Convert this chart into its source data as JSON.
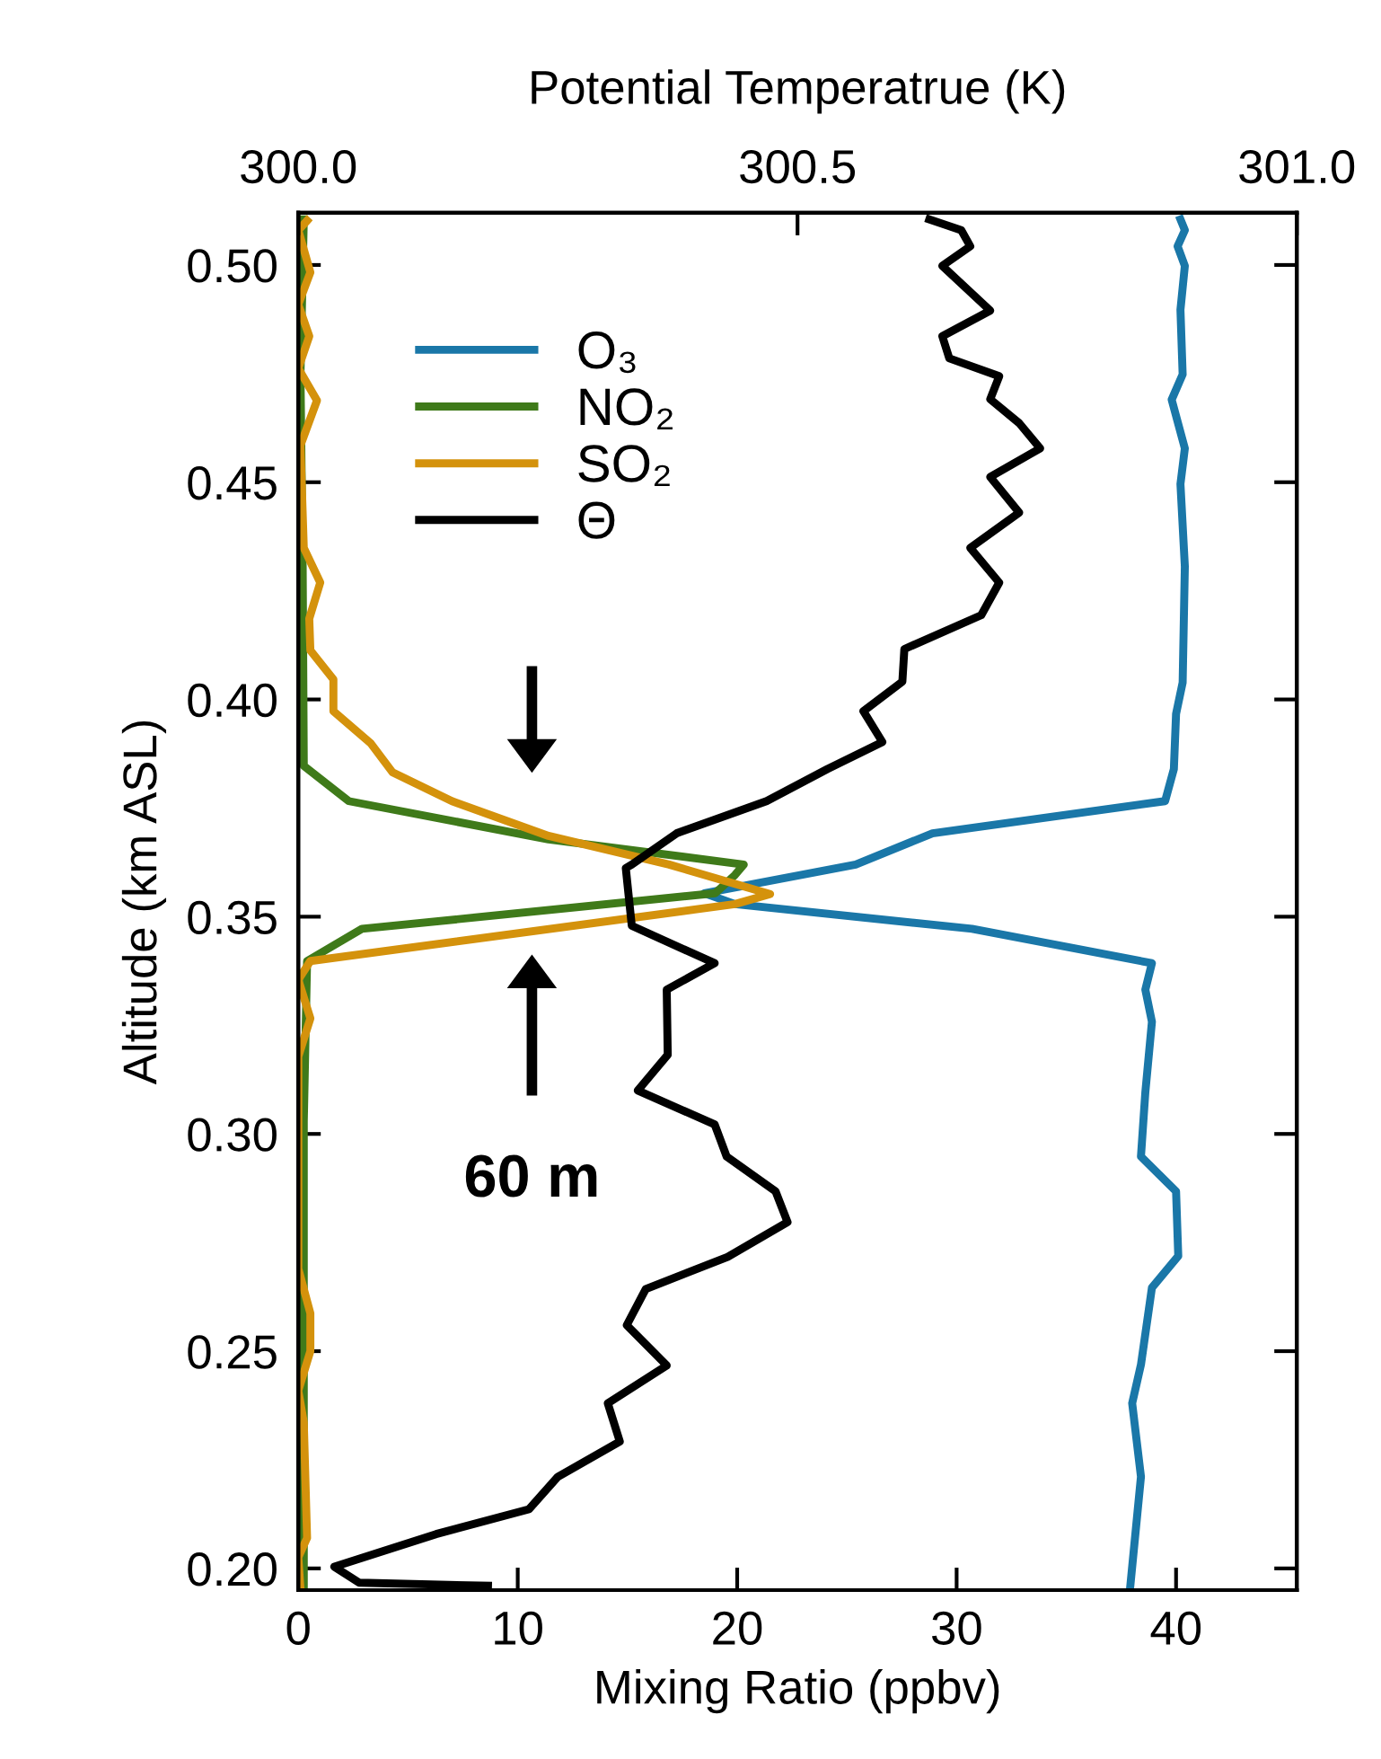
{
  "chart_data": {
    "type": "line",
    "xlabel": "Mixing Ratio (ppbv)",
    "ylabel": "Altitude (km ASL)",
    "x2label": "Potential Temperatrue (K)",
    "xlim": [
      0,
      45.5
    ],
    "xticks": [
      0,
      10,
      20,
      30,
      40
    ],
    "x2lim": [
      300.0,
      301.0
    ],
    "x2ticks": [
      {
        "value": 300.0,
        "label": "300.0"
      },
      {
        "value": 300.5,
        "label": "300.5"
      },
      {
        "value": 301.0,
        "label": "301.0"
      }
    ],
    "ylim": [
      0.195,
      0.512
    ],
    "yticks": [
      {
        "value": 0.2,
        "label": "0.20"
      },
      {
        "value": 0.25,
        "label": "0.25"
      },
      {
        "value": 0.3,
        "label": "0.30"
      },
      {
        "value": 0.35,
        "label": "0.35"
      },
      {
        "value": 0.4,
        "label": "0.40"
      },
      {
        "value": 0.45,
        "label": "0.45"
      },
      {
        "value": 0.5,
        "label": "0.50"
      }
    ],
    "legend": "top left",
    "grid": false,
    "marker": "none",
    "line_style": "solid",
    "annotations": [
      "60 m"
    ],
    "series": [
      {
        "name": "O₃",
        "color": "#1a77a8",
        "x": [
          40.2,
          40.4,
          40.07,
          40.4,
          40.2,
          40.3,
          39.8,
          40.4,
          40.2,
          40.4,
          40.3,
          40.0,
          39.9,
          39.5,
          28.9,
          25.4,
          18.5,
          19.9,
          30.7,
          38.9,
          38.6,
          38.9,
          38.6,
          38.4,
          40.0,
          40.1,
          38.9,
          38.4,
          38.0,
          38.4,
          37.9
        ],
        "values": [
          0.5105,
          0.508,
          0.5043,
          0.4998,
          0.4897,
          0.4748,
          0.469,
          0.4578,
          0.4496,
          0.4306,
          0.4039,
          0.3967,
          0.384,
          0.3766,
          0.3692,
          0.362,
          0.3554,
          0.3529,
          0.3472,
          0.3393,
          0.3332,
          0.3258,
          0.3096,
          0.2948,
          0.2868,
          0.2719,
          0.2646,
          0.2469,
          0.238,
          0.2211,
          0.1952
        ]
      },
      {
        "name": "NO₂",
        "color": "#3f7a1a",
        "x": [
          0.25,
          0.1,
          0.2,
          0.25,
          2.3,
          11.4,
          20.3,
          19.9,
          19.0,
          2.9,
          0.4,
          0.25,
          0.25
        ],
        "values": [
          0.5105,
          0.4748,
          0.4306,
          0.3847,
          0.3766,
          0.3678,
          0.362,
          0.3596,
          0.3554,
          0.3472,
          0.3398,
          0.3029,
          0.1952
        ]
      },
      {
        "name": "SO₂",
        "color": "#d4920c",
        "x": [
          0.4,
          0.0,
          0.55,
          0.0,
          0.5,
          0.0,
          0.85,
          0.1,
          0.25,
          1.0,
          0.5,
          0.55,
          1.6,
          1.6,
          3.3,
          4.3,
          7.0,
          11.4,
          16.9,
          21.5,
          19.9,
          0.55,
          0.0,
          0.55,
          0.0,
          0.0,
          0.0,
          0.55,
          0.55,
          0.0,
          0.25,
          0.4,
          0.0,
          0.1
        ],
        "values": [
          0.5102,
          0.508,
          0.4983,
          0.4909,
          0.4836,
          0.4762,
          0.4688,
          0.4585,
          0.4349,
          0.4269,
          0.4186,
          0.4113,
          0.4046,
          0.3973,
          0.3899,
          0.3832,
          0.3766,
          0.3686,
          0.362,
          0.3552,
          0.3529,
          0.3398,
          0.3355,
          0.3266,
          0.3178,
          0.2882,
          0.269,
          0.2587,
          0.25,
          0.2409,
          0.2336,
          0.207,
          0.2026,
          0.1952
        ]
      },
      {
        "name": "Θ",
        "color": "#000000",
        "axis": "x2",
        "x": [
          300.632,
          300.664,
          300.673,
          300.645,
          300.693,
          300.645,
          300.652,
          300.702,
          300.693,
          300.722,
          300.743,
          300.693,
          300.722,
          300.673,
          300.702,
          300.684,
          300.607,
          300.605,
          300.566,
          300.585,
          300.53,
          300.469,
          300.379,
          300.334,
          300.328,
          300.334,
          300.417,
          300.369,
          300.37,
          300.34,
          300.417,
          300.429,
          300.478,
          300.49,
          300.43,
          300.348,
          300.329,
          300.369,
          300.31,
          300.322,
          300.26,
          300.231,
          300.138,
          300.036,
          300.061,
          300.19
        ],
        "values": [
          0.5105,
          0.508,
          0.5043,
          0.4998,
          0.4895,
          0.4836,
          0.4785,
          0.4744,
          0.4691,
          0.4636,
          0.4578,
          0.4512,
          0.443,
          0.4349,
          0.4269,
          0.4194,
          0.4116,
          0.4041,
          0.3973,
          0.3902,
          0.384,
          0.3766,
          0.3692,
          0.362,
          0.3612,
          0.3479,
          0.3393,
          0.3332,
          0.3182,
          0.31,
          0.3022,
          0.2948,
          0.2868,
          0.2797,
          0.2717,
          0.2643,
          0.256,
          0.2467,
          0.238,
          0.2292,
          0.2211,
          0.2136,
          0.2079,
          0.2004,
          0.1967,
          0.196
        ]
      }
    ]
  }
}
